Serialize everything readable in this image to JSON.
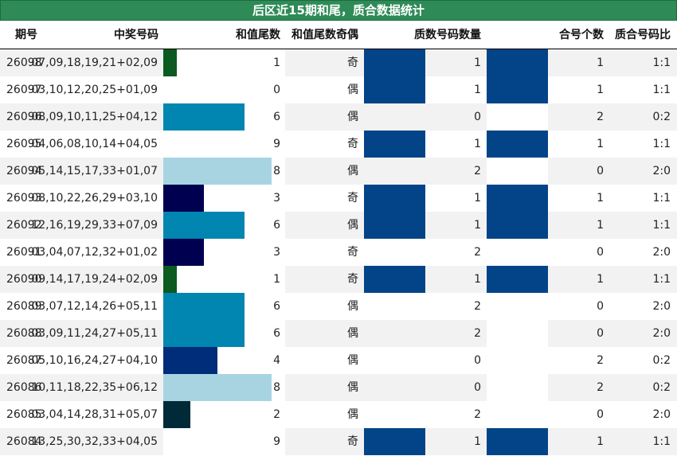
{
  "title": "后区近15期和尾，质合数据统计",
  "columns": {
    "period": "期号",
    "numbers": "中奖号码",
    "sum_tail": "和值尾数",
    "parity": "和值尾数奇偶",
    "prime_count": "质数号码数量",
    "composite_count": "合号个数",
    "ratio": "质合号码比"
  },
  "colors": {
    "title_bg": "#2e8b57",
    "stripe": "#f2f2f2",
    "count_fill": "#034488"
  },
  "chart_data": {
    "type": "table",
    "rows": [
      {
        "period": "26098",
        "numbers": "07,09,18,19,21+02,09",
        "sum_tail": 1,
        "parity": "奇",
        "prime_count": 1,
        "composite_count": 1,
        "ratio": "1:1"
      },
      {
        "period": "26097",
        "numbers": "03,10,12,20,25+01,09",
        "sum_tail": 0,
        "parity": "偶",
        "prime_count": 1,
        "composite_count": 1,
        "ratio": "1:1"
      },
      {
        "period": "26096",
        "numbers": "08,09,10,11,25+04,12",
        "sum_tail": 6,
        "parity": "偶",
        "prime_count": 0,
        "composite_count": 2,
        "ratio": "0:2"
      },
      {
        "period": "26095",
        "numbers": "04,06,08,10,14+04,05",
        "sum_tail": 9,
        "parity": "奇",
        "prime_count": 1,
        "composite_count": 1,
        "ratio": "1:1"
      },
      {
        "period": "26094",
        "numbers": "05,14,15,17,33+01,07",
        "sum_tail": 8,
        "parity": "偶",
        "prime_count": 2,
        "composite_count": 0,
        "ratio": "2:0"
      },
      {
        "period": "26093",
        "numbers": "08,10,22,26,29+03,10",
        "sum_tail": 3,
        "parity": "奇",
        "prime_count": 1,
        "composite_count": 1,
        "ratio": "1:1"
      },
      {
        "period": "26092",
        "numbers": "12,16,19,29,33+07,09",
        "sum_tail": 6,
        "parity": "偶",
        "prime_count": 1,
        "composite_count": 1,
        "ratio": "1:1"
      },
      {
        "period": "26091",
        "numbers": "03,04,07,12,32+01,02",
        "sum_tail": 3,
        "parity": "奇",
        "prime_count": 2,
        "composite_count": 0,
        "ratio": "2:0"
      },
      {
        "period": "26090",
        "numbers": "09,14,17,19,24+02,09",
        "sum_tail": 1,
        "parity": "奇",
        "prime_count": 1,
        "composite_count": 1,
        "ratio": "1:1"
      },
      {
        "period": "26089",
        "numbers": "03,07,12,14,26+05,11",
        "sum_tail": 6,
        "parity": "偶",
        "prime_count": 2,
        "composite_count": 0,
        "ratio": "2:0"
      },
      {
        "period": "26088",
        "numbers": "03,09,11,24,27+05,11",
        "sum_tail": 6,
        "parity": "偶",
        "prime_count": 2,
        "composite_count": 0,
        "ratio": "2:0"
      },
      {
        "period": "26087",
        "numbers": "05,10,16,24,27+04,10",
        "sum_tail": 4,
        "parity": "偶",
        "prime_count": 0,
        "composite_count": 2,
        "ratio": "0:2"
      },
      {
        "period": "26086",
        "numbers": "10,11,18,22,35+06,12",
        "sum_tail": 8,
        "parity": "偶",
        "prime_count": 0,
        "composite_count": 2,
        "ratio": "0:2"
      },
      {
        "period": "26085",
        "numbers": "03,04,14,28,31+05,07",
        "sum_tail": 2,
        "parity": "偶",
        "prime_count": 2,
        "composite_count": 0,
        "ratio": "2:0"
      },
      {
        "period": "26084",
        "numbers": "13,25,30,32,33+04,05",
        "sum_tail": 9,
        "parity": "奇",
        "prime_count": 1,
        "composite_count": 1,
        "ratio": "1:1"
      }
    ],
    "sum_tail_colors": {
      "0": "#ffffff",
      "1": "#0b5a1f",
      "2": "#002a38",
      "3": "#000050",
      "4": "#002d7a",
      "6": "#0086b0",
      "8": "#a8d4e2",
      "9": "#ffffff"
    }
  }
}
